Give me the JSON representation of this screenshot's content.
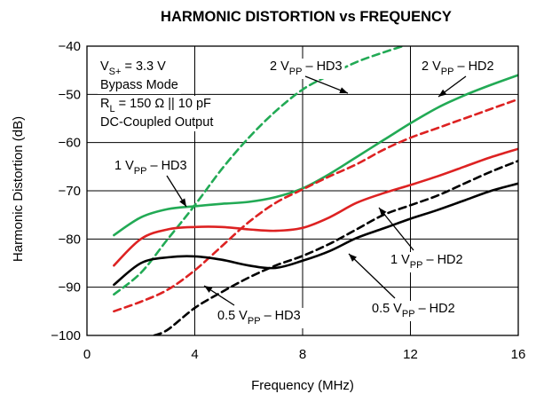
{
  "chart_data": {
    "type": "line",
    "title": "HARMONIC DISTORTION vs FREQUENCY",
    "xlabel": "Frequency (MHz)",
    "ylabel": "Harmonic Distortion (dB)",
    "xlim": [
      0,
      16
    ],
    "ylim": [
      -100,
      -40
    ],
    "x_ticks": [
      "0",
      "4",
      "8",
      "12",
      "16"
    ],
    "y_ticks": [
      "−100",
      "−90",
      "−80",
      "−70",
      "−60",
      "−50",
      "−40"
    ],
    "grid": true,
    "conditions": [
      {
        "main": "V",
        "sub": "S+",
        "rest": " = 3.3 V"
      },
      {
        "main": "Bypass Mode",
        "sub": "",
        "rest": ""
      },
      {
        "main": "R",
        "sub": "L",
        "rest": " = 150 Ω || 10 pF"
      },
      {
        "main": "DC-Coupled Output",
        "sub": "",
        "rest": ""
      }
    ],
    "series": [
      {
        "name": "2 VPP – HD3",
        "label_main": "2 V",
        "label_sub": "PP",
        "label_rest": " – HD3",
        "color": "#22aa55",
        "dash": true,
        "x": [
          1,
          2,
          3,
          4,
          5,
          6,
          7,
          8,
          9,
          10,
          11,
          12
        ],
        "y": [
          -91.5,
          -87,
          -80,
          -73,
          -65.5,
          -59,
          -53.5,
          -49,
          -46,
          -43.3,
          -41.3,
          -39.5
        ]
      },
      {
        "name": "2 VPP – HD2",
        "label_main": "2 V",
        "label_sub": "PP",
        "label_rest": " – HD2",
        "color": "#22aa55",
        "dash": false,
        "x": [
          1,
          2,
          3,
          4,
          5,
          6,
          7,
          8,
          9,
          10,
          11,
          12,
          13,
          14,
          15,
          16
        ],
        "y": [
          -79.2,
          -75.5,
          -73.8,
          -73.2,
          -72.7,
          -72.3,
          -71.3,
          -69.5,
          -66.5,
          -63,
          -59.5,
          -56,
          -52.8,
          -50.2,
          -48,
          -46
        ]
      },
      {
        "name": "1 VPP – HD3",
        "label_main": "1 V",
        "label_sub": "PP",
        "label_rest": " – HD3",
        "color": "#dd2222",
        "dash": true,
        "x": [
          1,
          2,
          3,
          4,
          5,
          6,
          7,
          8,
          9,
          10,
          11,
          12,
          13,
          14,
          15,
          16
        ],
        "y": [
          -95,
          -93,
          -90.5,
          -86.5,
          -81.5,
          -76.5,
          -72.5,
          -69.7,
          -67,
          -64.5,
          -61.5,
          -59,
          -57,
          -55,
          -53,
          -51
        ]
      },
      {
        "name": "1 VPP – HD2",
        "label_main": "1 V",
        "label_sub": "PP",
        "label_rest": " – HD2",
        "color": "#dd2222",
        "dash": false,
        "x": [
          1,
          2,
          3,
          4,
          5,
          6,
          7,
          8,
          9,
          10,
          11,
          12,
          13,
          14,
          15,
          16
        ],
        "y": [
          -85.5,
          -80,
          -78,
          -77.5,
          -77.5,
          -78,
          -78.3,
          -77.7,
          -75.5,
          -72.5,
          -70.5,
          -68.8,
          -67,
          -65,
          -63,
          -61.3
        ]
      },
      {
        "name": "0.5 VPP – HD3",
        "label_main": "0.5 V",
        "label_sub": "PP",
        "label_rest": " – HD3",
        "color": "#000000",
        "dash": true,
        "x": [
          2.5,
          3,
          4,
          5,
          6,
          7,
          8,
          9,
          10,
          11,
          12,
          13,
          14,
          15,
          16
        ],
        "y": [
          -100,
          -98.8,
          -94.3,
          -91,
          -88,
          -85.5,
          -83.5,
          -81,
          -78,
          -75,
          -73,
          -71,
          -68.5,
          -66,
          -63.8
        ]
      },
      {
        "name": "0.5 VPP – HD2",
        "label_main": "0.5 V",
        "label_sub": "PP",
        "label_rest": " – HD2",
        "color": "#000000",
        "dash": false,
        "x": [
          1,
          2,
          3,
          4,
          5,
          6,
          7,
          8,
          9,
          10,
          11,
          12,
          13,
          14,
          15,
          16
        ],
        "y": [
          -89.5,
          -85,
          -83.8,
          -83.6,
          -84.3,
          -85.5,
          -86,
          -84.5,
          -82.5,
          -79.8,
          -77.8,
          -75.8,
          -74,
          -72,
          -70,
          -68.5
        ]
      }
    ]
  }
}
